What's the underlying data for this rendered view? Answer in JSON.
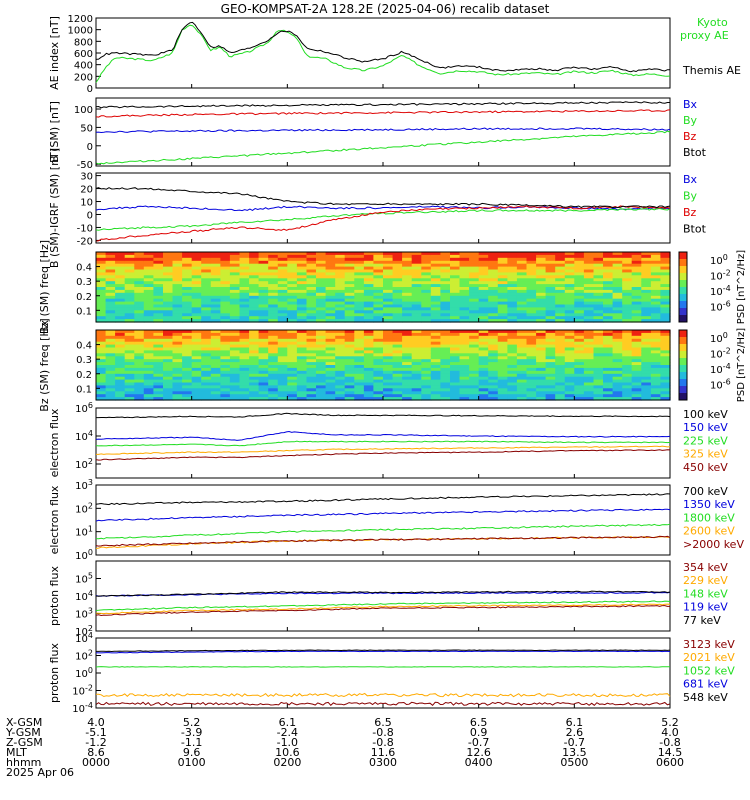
{
  "title": "GEO-KOMPSAT-2A 128.2E (2025-04-06) recalib dataset",
  "colors": {
    "black": "#000000",
    "green": "#22dd22",
    "blue": "#0000dd",
    "red": "#dd0000",
    "orange": "#ffaa00",
    "darkred": "#880000"
  },
  "chart_data": [
    {
      "type": "line",
      "ylabel": "AE index [nT]",
      "ylim": [
        0,
        1200
      ],
      "yticks": [
        "0",
        "200",
        "400",
        "600",
        "800",
        "1000",
        "1200"
      ],
      "legend": [
        "Kyoto proxy AE",
        "Themis AE"
      ],
      "x_hours": [
        0,
        0.1,
        0.2,
        0.4,
        0.6,
        0.8,
        0.9,
        1.0,
        1.1,
        1.2,
        1.3,
        1.4,
        1.6,
        1.8,
        1.9,
        2.0,
        2.1,
        2.2,
        2.4,
        2.6,
        2.8,
        3.0,
        3.2,
        3.4,
        3.6,
        3.8,
        4.0,
        4.2,
        4.4,
        4.6,
        4.8,
        5.0,
        5.2,
        5.4,
        5.6,
        5.8,
        6.0
      ],
      "series": [
        {
          "name": "Kyoto proxy AE",
          "color": "green",
          "values": [
            100,
            350,
            520,
            500,
            470,
            600,
            1000,
            1100,
            900,
            650,
            700,
            540,
            620,
            780,
            1000,
            960,
            850,
            550,
            500,
            350,
            300,
            380,
            560,
            370,
            250,
            300,
            280,
            230,
            240,
            260,
            230,
            280,
            260,
            300,
            220,
            240,
            210
          ]
        },
        {
          "name": "Themis AE",
          "color": "black",
          "values": [
            480,
            580,
            600,
            580,
            560,
            650,
            1000,
            1150,
            950,
            700,
            720,
            600,
            680,
            820,
            950,
            980,
            900,
            680,
            620,
            520,
            450,
            500,
            620,
            480,
            340,
            380,
            360,
            300,
            310,
            330,
            300,
            360,
            320,
            360,
            290,
            320,
            300
          ]
        }
      ]
    },
    {
      "type": "line",
      "ylabel": "B (SM) [nT]",
      "ylim": [
        -55,
        130
      ],
      "yticks": [
        "-50",
        "0",
        "50",
        "100"
      ],
      "legend": [
        "Bx",
        "By",
        "Bz",
        "Btot"
      ],
      "x_hours": [
        0,
        1,
        2,
        3,
        4,
        5,
        6
      ],
      "series": [
        {
          "name": "Bx",
          "color": "blue",
          "values": [
            38,
            40,
            42,
            44,
            46,
            47,
            44
          ]
        },
        {
          "name": "By",
          "color": "green",
          "values": [
            -48,
            -35,
            -20,
            -5,
            10,
            25,
            38
          ]
        },
        {
          "name": "Bz",
          "color": "red",
          "values": [
            80,
            85,
            88,
            90,
            92,
            94,
            96
          ]
        },
        {
          "name": "Btot",
          "color": "black",
          "values": [
            105,
            108,
            110,
            112,
            114,
            117,
            118
          ]
        }
      ]
    },
    {
      "type": "line",
      "ylabel": "B (SM)-IGRF (SM) [nT]",
      "ylim": [
        -22,
        32
      ],
      "yticks": [
        "-20",
        "-10",
        "0",
        "10",
        "20",
        "30"
      ],
      "legend": [
        "Bx",
        "By",
        "Bz",
        "Btot"
      ],
      "x_hours": [
        0,
        0.5,
        1,
        1.5,
        2,
        2.5,
        3,
        3.5,
        4,
        4.5,
        5,
        5.5,
        6
      ],
      "series": [
        {
          "name": "Bx",
          "color": "blue",
          "values": [
            4,
            6,
            5,
            3,
            6,
            5,
            5,
            6,
            5,
            6,
            5,
            4,
            5
          ]
        },
        {
          "name": "By",
          "color": "green",
          "values": [
            -12,
            -10,
            -9,
            -6,
            -4,
            -1,
            1,
            2,
            3,
            3,
            3,
            4,
            4
          ]
        },
        {
          "name": "Bz",
          "color": "red",
          "values": [
            -20,
            -16,
            -13,
            -10,
            -12,
            -4,
            2,
            4,
            5,
            6,
            5,
            6,
            5
          ]
        },
        {
          "name": "Btot",
          "color": "black",
          "values": [
            20,
            20,
            18,
            16,
            10,
            8,
            8,
            8,
            8,
            7,
            6,
            6,
            6
          ]
        }
      ]
    },
    {
      "type": "heatmap",
      "title": "Bx (SM)",
      "ylabel": "freq [Hz]",
      "ylim": [
        0.02,
        0.5
      ],
      "yticks": [
        "0.1",
        "0.2",
        "0.3",
        "0.4"
      ],
      "colorbar_label": "PSD [nT^2/Hz]",
      "colorbar_ticks": [
        "10^0",
        "10^-2",
        "10^-4",
        "10^-6"
      ]
    },
    {
      "type": "heatmap",
      "title": "Bz (SM)",
      "ylabel": "freq [Hz]",
      "ylim": [
        0.02,
        0.5
      ],
      "yticks": [
        "0.1",
        "0.2",
        "0.3",
        "0.4"
      ],
      "colorbar_label": "PSD [nT^2/Hz]",
      "colorbar_ticks": [
        "10^0",
        "10^-2",
        "10^-4",
        "10^-6"
      ]
    },
    {
      "type": "line",
      "ylabel": "electron flux",
      "log": true,
      "ylim_exp": [
        1,
        6
      ],
      "yticks": [
        "10^2",
        "10^4",
        "10^6"
      ],
      "legend": [
        "100 keV",
        "150 keV",
        "225 keV",
        "325 keV",
        "450 keV"
      ],
      "x_hours": [
        0,
        1,
        1.5,
        2,
        2.5,
        3,
        4,
        5,
        6
      ],
      "series": [
        {
          "name": "100 keV",
          "color": "black",
          "values": [
            200000,
            250000,
            230000,
            400000,
            300000,
            300000,
            280000,
            260000,
            250000
          ]
        },
        {
          "name": "150 keV",
          "color": "blue",
          "values": [
            6000,
            8000,
            5000,
            20000,
            12000,
            12000,
            10000,
            9000,
            9000
          ]
        },
        {
          "name": "225 keV",
          "color": "green",
          "values": [
            2000,
            2500,
            2000,
            4000,
            4000,
            4000,
            4000,
            3500,
            3500
          ]
        },
        {
          "name": "325 keV",
          "color": "orange",
          "values": [
            500,
            700,
            700,
            900,
            1100,
            1200,
            1400,
            1600,
            1800
          ]
        },
        {
          "name": "450 keV",
          "color": "darkred",
          "values": [
            200,
            300,
            300,
            400,
            500,
            600,
            700,
            900,
            1000
          ]
        }
      ]
    },
    {
      "type": "line",
      "ylabel": "electron flux",
      "log": true,
      "ylim_exp": [
        0,
        3
      ],
      "yticks": [
        "10^0",
        "10^1",
        "10^2",
        "10^3"
      ],
      "legend": [
        "700 keV",
        "1350 keV",
        "1800 keV",
        "2600 keV",
        ">2000 keV"
      ],
      "x_hours": [
        0,
        1,
        2,
        3,
        4,
        5,
        6
      ],
      "series": [
        {
          "name": "700 keV",
          "color": "black",
          "values": [
            150,
            180,
            200,
            250,
            300,
            350,
            400
          ]
        },
        {
          "name": "1350 keV",
          "color": "blue",
          "values": [
            30,
            40,
            50,
            60,
            70,
            80,
            90
          ]
        },
        {
          "name": "1800 keV",
          "color": "green",
          "values": [
            5,
            7,
            10,
            12,
            14,
            17,
            20
          ]
        },
        {
          "name": "2600 keV",
          "color": "orange",
          "values": [
            2,
            3,
            4,
            4.5,
            5,
            5.5,
            6
          ]
        },
        {
          ">2000 keV": "",
          "name": ">2000 keV",
          "color": "darkred",
          "values": [
            2.5,
            3.2,
            4,
            4.5,
            5,
            5.5,
            6
          ]
        }
      ]
    },
    {
      "type": "line",
      "ylabel": "proton flux",
      "log": true,
      "ylim_exp": [
        2,
        6
      ],
      "yticks": [
        "10^2",
        "10^3",
        "10^4",
        "10^5"
      ],
      "legend": [
        "354 keV",
        "229 keV",
        "148 keV",
        "119 keV",
        "77 keV"
      ],
      "x_hours": [
        0,
        1,
        2,
        3,
        4,
        5,
        6
      ],
      "series": [
        {
          "name": "354 keV",
          "color": "darkred",
          "values": [
            800,
            1200,
            1500,
            2000,
            2200,
            2500,
            2700
          ]
        },
        {
          "name": "229 keV",
          "color": "orange",
          "values": [
            1000,
            1500,
            1800,
            2500,
            2800,
            3000,
            3300
          ]
        },
        {
          "name": "148 keV",
          "color": "green",
          "values": [
            1500,
            2200,
            2700,
            3500,
            4000,
            4500,
            5000
          ]
        },
        {
          "name": "119 keV",
          "color": "blue",
          "values": [
            10000,
            12000,
            14000,
            14500,
            15000,
            15000,
            15500
          ]
        },
        {
          "name": "77 keV",
          "color": "black",
          "values": [
            10000,
            12500,
            17000,
            16000,
            17000,
            18000,
            17000
          ]
        }
      ]
    },
    {
      "type": "line",
      "ylabel": "proton flux",
      "log": true,
      "ylim_exp": [
        -4,
        4
      ],
      "yticks": [
        "10^-4",
        "10^-2",
        "10^0",
        "10^2",
        "10^4"
      ],
      "legend": [
        "3123 keV",
        "2021 keV",
        "1052 keV",
        "681 keV",
        "548 keV"
      ],
      "x_hours": [
        0,
        1,
        2,
        3,
        4,
        5,
        6
      ],
      "series": [
        {
          "name": "3123 keV",
          "color": "darkred",
          "values": [
            0.0003,
            0.0003,
            0.0003,
            0.0003,
            0.0003,
            0.0003,
            0.0003
          ]
        },
        {
          "name": "2021 keV",
          "color": "orange",
          "values": [
            0.003,
            0.003,
            0.003,
            0.003,
            0.003,
            0.003,
            0.003
          ]
        },
        {
          "name": "1052 keV",
          "color": "green",
          "values": [
            5,
            5,
            5,
            5,
            5,
            5,
            5
          ]
        },
        {
          "name": "681 keV",
          "color": "blue",
          "values": [
            200,
            250,
            300,
            300,
            300,
            300,
            300
          ]
        },
        {
          "name": "548 keV",
          "color": "black",
          "values": [
            300,
            350,
            400,
            400,
            400,
            400,
            400
          ]
        }
      ]
    }
  ],
  "x_axis": {
    "ticks": [
      "0000",
      "0100",
      "0200",
      "0300",
      "0400",
      "0500",
      "0600"
    ],
    "label": "hhmm",
    "date": "2025 Apr 06",
    "rows": [
      {
        "label": "X-GSM",
        "values": [
          "4.0",
          "5.2",
          "6.1",
          "6.5",
          "6.5",
          "6.1",
          "5.2"
        ]
      },
      {
        "label": "Y-GSM",
        "values": [
          "-5.1",
          "-3.9",
          "-2.4",
          "-0.8",
          "0.9",
          "2.6",
          "4.0"
        ]
      },
      {
        "label": "Z-GSM",
        "values": [
          "-1.2",
          "-1.1",
          "-1.0",
          "-0.8",
          "-0.7",
          "-0.7",
          "-0.8"
        ]
      },
      {
        "label": "MLT",
        "values": [
          "8.6",
          "9.6",
          "10.6",
          "11.6",
          "12.6",
          "13.5",
          "14.5"
        ]
      }
    ]
  }
}
